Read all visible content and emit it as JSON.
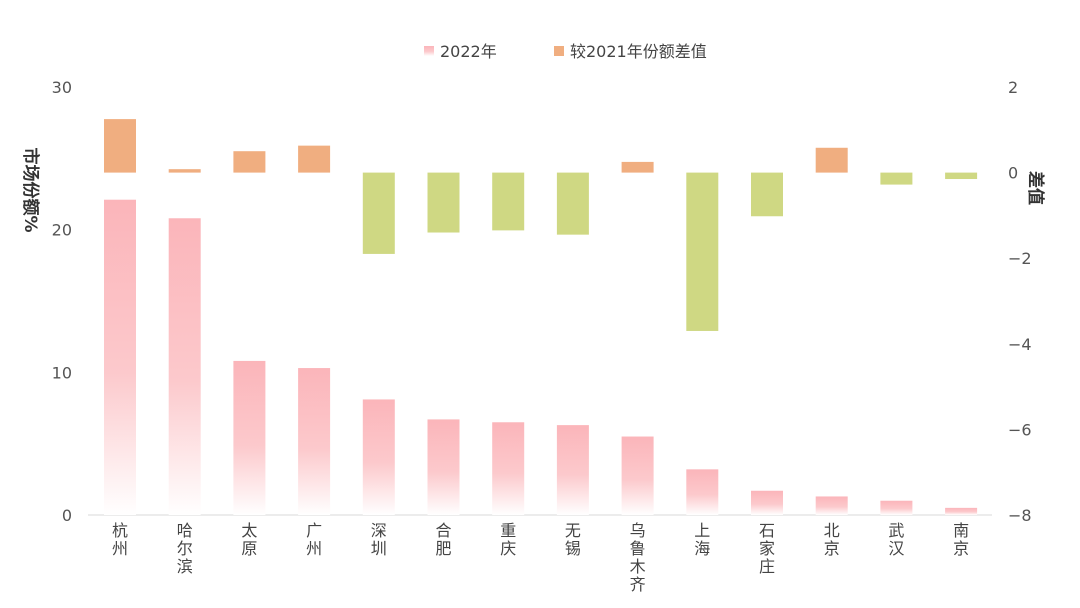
{
  "chart_data": {
    "type": "bar",
    "categories": [
      "杭州",
      "哈尔滨",
      "太原",
      "广州",
      "深圳",
      "合肥",
      "重庆",
      "无锡",
      "乌鲁木齐",
      "上海",
      "石家庄",
      "北京",
      "武汉",
      "南京"
    ],
    "series": [
      {
        "name": "2022年",
        "axis": "left",
        "values": [
          22.1,
          20.8,
          10.8,
          10.3,
          8.1,
          6.7,
          6.5,
          6.3,
          5.5,
          3.2,
          1.7,
          1.3,
          1.0,
          0.5
        ]
      },
      {
        "name": "较2021年份额差值",
        "axis": "right",
        "values": [
          1.25,
          0.08,
          0.5,
          0.63,
          -1.9,
          -1.4,
          -1.35,
          -1.45,
          0.25,
          -3.7,
          -1.02,
          0.58,
          -0.28,
          -0.15
        ]
      }
    ],
    "ylabel": "市场份额%",
    "y2label": "差值",
    "ylim": [
      0,
      30
    ],
    "y2lim": [
      -8,
      2
    ],
    "yticks": [
      "0",
      "10",
      "20",
      "30"
    ],
    "y2ticks": [
      "2",
      "0",
      "−2",
      "−4",
      "−6",
      "−8"
    ],
    "legend_position": "top-center",
    "colors": {
      "share_top": "#fbb5ba",
      "share_bottom": "#ffffff",
      "diff_positive": "#f0ae80",
      "diff_negative": "#cfd883"
    }
  }
}
